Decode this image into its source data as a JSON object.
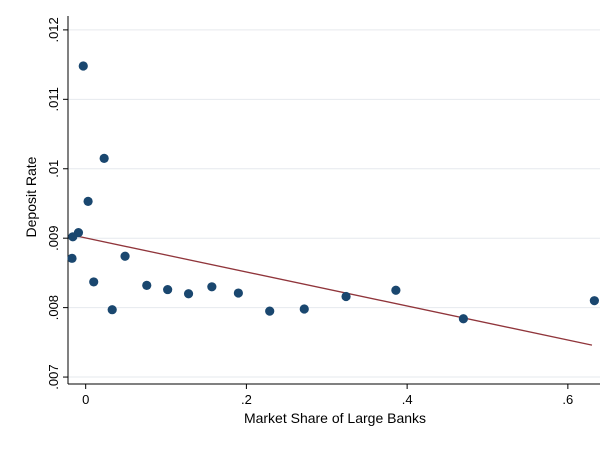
{
  "chart_data": {
    "type": "scatter",
    "title": "",
    "xlabel": "Market Share of Large Banks",
    "ylabel": "Deposit Rate",
    "xlim": [
      -0.022,
      0.64
    ],
    "ylim": [
      0.0069,
      0.0122
    ],
    "x_ticks": [
      0,
      0.2,
      0.4,
      0.6
    ],
    "x_tick_labels": [
      "0",
      ".2",
      ".4",
      ".6"
    ],
    "y_ticks": [
      0.007,
      0.008,
      0.009,
      0.01,
      0.011,
      0.012
    ],
    "y_tick_labels": [
      ".007",
      ".008",
      ".009",
      ".01",
      ".011",
      ".012"
    ],
    "grid": "horizontal",
    "marker_color": "#1a476f",
    "line_color": "#90353b",
    "points": [
      {
        "x": -0.003,
        "y": 0.01148
      },
      {
        "x": 0.023,
        "y": 0.01015
      },
      {
        "x": 0.003,
        "y": 0.00953
      },
      {
        "x": -0.009,
        "y": 0.00908
      },
      {
        "x": -0.016,
        "y": 0.00902
      },
      {
        "x": -0.017,
        "y": 0.00871
      },
      {
        "x": 0.01,
        "y": 0.00837
      },
      {
        "x": 0.049,
        "y": 0.00874
      },
      {
        "x": 0.033,
        "y": 0.00797
      },
      {
        "x": 0.076,
        "y": 0.00832
      },
      {
        "x": 0.102,
        "y": 0.00826
      },
      {
        "x": 0.128,
        "y": 0.0082
      },
      {
        "x": 0.157,
        "y": 0.0083
      },
      {
        "x": 0.19,
        "y": 0.00821
      },
      {
        "x": 0.229,
        "y": 0.00795
      },
      {
        "x": 0.272,
        "y": 0.00798
      },
      {
        "x": 0.324,
        "y": 0.00816
      },
      {
        "x": 0.386,
        "y": 0.00825
      },
      {
        "x": 0.47,
        "y": 0.00784
      },
      {
        "x": 0.633,
        "y": 0.0081
      }
    ],
    "fit_line": [
      {
        "x": -0.015,
        "y": 0.00904
      },
      {
        "x": 0.63,
        "y": 0.00746
      }
    ]
  }
}
